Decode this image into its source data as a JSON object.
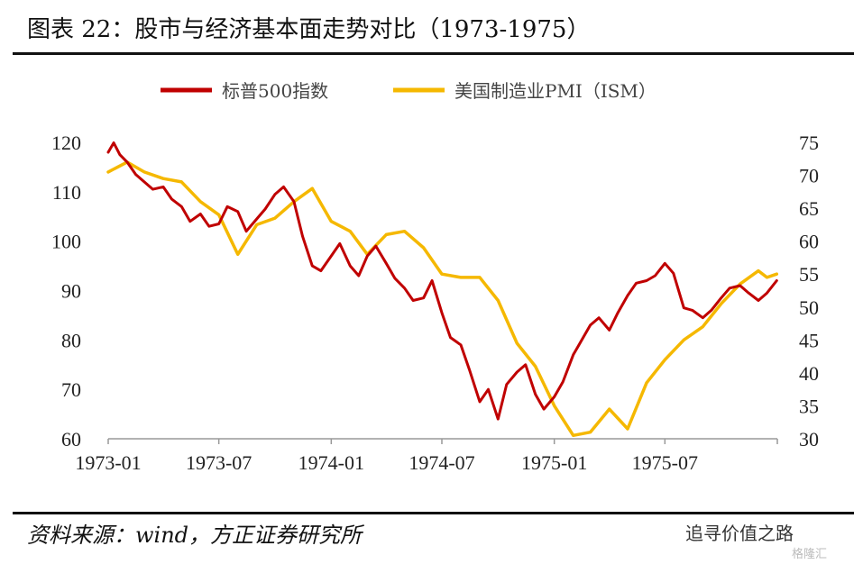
{
  "title": "图表 22：股市与经济基本面走势对比（1973-1975）",
  "source": "资料来源：wind，方正证券研究所",
  "watermark": "追寻价值之路",
  "watermark_logo": "格隆汇",
  "chart_data": {
    "type": "line",
    "x_ticks": [
      "1973-01",
      "1973-07",
      "1974-01",
      "1974-07",
      "1975-01",
      "1975-07"
    ],
    "y_left_ticks": [
      60,
      70,
      80,
      90,
      100,
      110,
      120
    ],
    "y_right_ticks": [
      30,
      35,
      40,
      45,
      50,
      55,
      60,
      65,
      70,
      75
    ],
    "y_left_lim": [
      60,
      122
    ],
    "y_right_lim": [
      30,
      76
    ],
    "legend": "top-center",
    "colors": {
      "sp500": "#c00000",
      "pmi": "#f5b800"
    },
    "series": [
      {
        "name": "标普500指数",
        "axis": "left",
        "color": "#c00000",
        "points": [
          [
            "1973-01",
            118.0
          ],
          [
            "1973-01-10",
            119.9
          ],
          [
            "1973-01-20",
            117.5
          ],
          [
            "1973-02",
            116.0
          ],
          [
            "1973-02-15",
            113.5
          ],
          [
            "1973-03",
            112.0
          ],
          [
            "1973-03-15",
            110.5
          ],
          [
            "1973-04",
            111.0
          ],
          [
            "1973-04-15",
            108.5
          ],
          [
            "1973-05",
            107.0
          ],
          [
            "1973-05-15",
            104.0
          ],
          [
            "1973-06",
            105.5
          ],
          [
            "1973-06-15",
            103.0
          ],
          [
            "1973-07",
            103.5
          ],
          [
            "1973-07-15",
            107.0
          ],
          [
            "1973-08",
            106.0
          ],
          [
            "1973-08-15",
            102.0
          ],
          [
            "1973-09",
            104.5
          ],
          [
            "1973-09-15",
            106.5
          ],
          [
            "1973-10",
            109.5
          ],
          [
            "1973-10-15",
            111.0
          ],
          [
            "1973-11",
            108.0
          ],
          [
            "1973-11-15",
            101.0
          ],
          [
            "1973-12",
            95.0
          ],
          [
            "1973-12-15",
            94.0
          ],
          [
            "1974-01",
            97.0
          ],
          [
            "1974-01-15",
            99.5
          ],
          [
            "1974-02",
            95.0
          ],
          [
            "1974-02-15",
            93.0
          ],
          [
            "1974-03",
            97.0
          ],
          [
            "1974-03-15",
            99.0
          ],
          [
            "1974-04",
            95.5
          ],
          [
            "1974-04-15",
            92.5
          ],
          [
            "1974-05",
            90.5
          ],
          [
            "1974-05-15",
            88.0
          ],
          [
            "1974-06",
            88.5
          ],
          [
            "1974-06-15",
            92.0
          ],
          [
            "1974-07",
            85.5
          ],
          [
            "1974-07-15",
            80.5
          ],
          [
            "1974-08",
            79.0
          ],
          [
            "1974-08-15",
            74.0
          ],
          [
            "1974-09",
            67.5
          ],
          [
            "1974-09-15",
            70.0
          ],
          [
            "1974-10",
            64.0
          ],
          [
            "1974-10-15",
            71.0
          ],
          [
            "1974-11",
            73.5
          ],
          [
            "1974-11-15",
            75.0
          ],
          [
            "1974-12",
            69.0
          ],
          [
            "1974-12-15",
            66.0
          ],
          [
            "1975-01",
            68.5
          ],
          [
            "1975-01-15",
            71.5
          ],
          [
            "1975-02",
            77.0
          ],
          [
            "1975-02-15",
            80.0
          ],
          [
            "1975-03",
            83.0
          ],
          [
            "1975-03-15",
            84.5
          ],
          [
            "1975-04",
            82.0
          ],
          [
            "1975-04-15",
            85.5
          ],
          [
            "1975-05",
            89.0
          ],
          [
            "1975-05-15",
            91.5
          ],
          [
            "1975-06",
            92.0
          ],
          [
            "1975-06-15",
            93.0
          ],
          [
            "1975-07",
            95.5
          ],
          [
            "1975-07-15",
            93.5
          ],
          [
            "1975-08",
            86.5
          ],
          [
            "1975-08-15",
            86.0
          ],
          [
            "1975-09",
            84.5
          ],
          [
            "1975-09-15",
            86.0
          ],
          [
            "1975-10",
            88.5
          ],
          [
            "1975-10-15",
            90.5
          ],
          [
            "1975-11",
            91.0
          ],
          [
            "1975-11-15",
            89.5
          ],
          [
            "1975-12",
            88.0
          ],
          [
            "1975-12-15",
            89.5
          ],
          [
            "1975-12-31",
            92.0
          ]
        ]
      },
      {
        "name": "美国制造业PMI（ISM）",
        "axis": "right",
        "color": "#f5b800",
        "points": [
          [
            "1973-01",
            70.5
          ],
          [
            "1973-02",
            72.0
          ],
          [
            "1973-03",
            70.5
          ],
          [
            "1973-04",
            69.5
          ],
          [
            "1973-05",
            69.0
          ],
          [
            "1973-06",
            66.0
          ],
          [
            "1973-07",
            64.0
          ],
          [
            "1973-08",
            58.0
          ],
          [
            "1973-09",
            62.5
          ],
          [
            "1973-10",
            63.5
          ],
          [
            "1973-11",
            66.0
          ],
          [
            "1973-12",
            68.0
          ],
          [
            "1974-01",
            63.0
          ],
          [
            "1974-02",
            61.5
          ],
          [
            "1974-03",
            58.0
          ],
          [
            "1974-04",
            61.0
          ],
          [
            "1974-05",
            61.5
          ],
          [
            "1974-06",
            59.0
          ],
          [
            "1974-07",
            55.0
          ],
          [
            "1974-08",
            54.5
          ],
          [
            "1974-09",
            54.5
          ],
          [
            "1974-10",
            51.0
          ],
          [
            "1974-11",
            44.5
          ],
          [
            "1974-12",
            41.0
          ],
          [
            "1975-01",
            35.0
          ],
          [
            "1975-02",
            30.5
          ],
          [
            "1975-03",
            31.0
          ],
          [
            "1975-04",
            34.5
          ],
          [
            "1975-05",
            31.5
          ],
          [
            "1975-06",
            38.5
          ],
          [
            "1975-07",
            42.0
          ],
          [
            "1975-08",
            45.0
          ],
          [
            "1975-09",
            47.0
          ],
          [
            "1975-10",
            50.5
          ],
          [
            "1975-11",
            53.5
          ],
          [
            "1975-12",
            55.5
          ],
          [
            "1975-12-15",
            54.5
          ],
          [
            "1975-12-31",
            55.0
          ]
        ]
      }
    ]
  }
}
